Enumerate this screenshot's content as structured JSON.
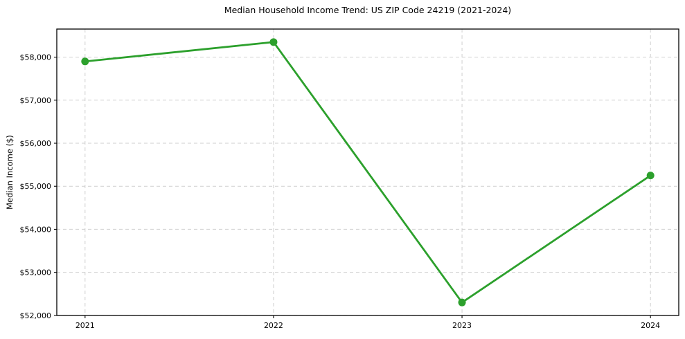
{
  "chart_data": {
    "type": "line",
    "title": "Median Household Income Trend: US ZIP Code 24219 (2021-2024)",
    "xlabel": "",
    "ylabel": "Median Income ($)",
    "x": [
      2021,
      2022,
      2023,
      2024
    ],
    "x_tick_labels": [
      "2021",
      "2022",
      "2023",
      "2024"
    ],
    "series": [
      {
        "name": "median-household-income",
        "values": [
          57900,
          58350,
          52300,
          55250
        ],
        "color": "#2ca02c",
        "marker": "circle",
        "line_width": 2.8,
        "marker_radius": 5.5
      }
    ],
    "y_ticks": [
      52000,
      53000,
      54000,
      55000,
      56000,
      57000,
      58000
    ],
    "y_tick_labels": [
      "$52,000",
      "$53,000",
      "$54,000",
      "$55,000",
      "$56,000",
      "$57,000",
      "$58,000"
    ],
    "xlim": [
      2020.85,
      2024.15
    ],
    "ylim": [
      51997.5,
      58652.5
    ],
    "grid": true,
    "grid_style": "dashed",
    "grid_color": "#cfcfcf",
    "spine_color": "#000000",
    "background_color": "#ffffff",
    "legend": null
  }
}
